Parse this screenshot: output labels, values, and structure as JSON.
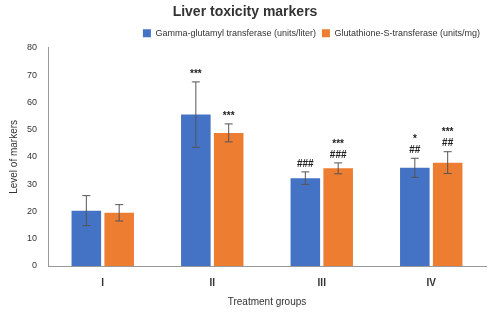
{
  "chart_data": {
    "type": "bar",
    "title": "Liver toxicity markers",
    "x_label": "Treatment groups",
    "y_label": "Level of markers",
    "categories": [
      "I",
      "II",
      "III",
      "IV"
    ],
    "series": [
      {
        "name": "Gamma-glutamyl transferase (units/liter)",
        "color": "#4472c4",
        "values": [
          20.3,
          55.5,
          32.2,
          36.0
        ],
        "errors": [
          5.5,
          12.0,
          2.3,
          3.5
        ],
        "annotations": [
          [],
          [
            "***"
          ],
          [
            "###"
          ],
          [
            "*",
            "##"
          ]
        ]
      },
      {
        "name": "Glutathione-S-transferase (units/mg)",
        "color": "#ed7d31",
        "values": [
          19.5,
          48.8,
          35.8,
          37.9
        ],
        "errors": [
          3.0,
          3.3,
          2.0,
          4.0
        ],
        "annotations": [
          [],
          [
            "***"
          ],
          [
            "***",
            "###"
          ],
          [
            "***",
            "##"
          ]
        ]
      }
    ],
    "ylim": [
      0,
      80
    ],
    "yticks": [
      0,
      10,
      20,
      30,
      40,
      50,
      60,
      70,
      80
    ],
    "grid": false,
    "legend": "top-right"
  }
}
